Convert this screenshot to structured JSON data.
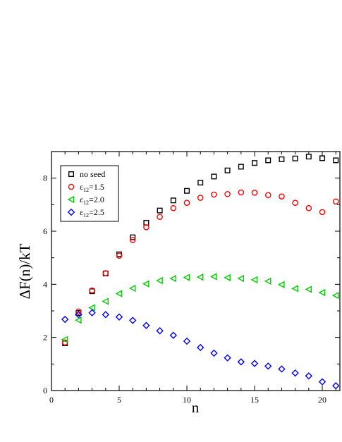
{
  "chart_data": {
    "type": "scatter",
    "title": "",
    "xlabel": "n",
    "ylabel": "ΔF(n)/kT",
    "xlim": [
      0,
      21.3
    ],
    "ylim": [
      0,
      9
    ],
    "xticks": [
      0,
      5,
      10,
      15,
      20
    ],
    "yticks": [
      0,
      2,
      4,
      6,
      8
    ],
    "grid": false,
    "legend_position": "top-left",
    "x": [
      1,
      2,
      3,
      4,
      5,
      6,
      7,
      8,
      9,
      10,
      11,
      12,
      13,
      14,
      15,
      16,
      17,
      18,
      19,
      20,
      21
    ],
    "series": [
      {
        "name": "no seed",
        "name_base": "no seed",
        "name_sub": "",
        "name_rest": "",
        "marker": "square",
        "color": "#000000",
        "values": [
          1.78,
          2.92,
          3.74,
          4.41,
          5.13,
          5.77,
          6.32,
          6.78,
          7.16,
          7.52,
          7.83,
          8.06,
          8.29,
          8.43,
          8.57,
          8.67,
          8.71,
          8.74,
          8.81,
          8.75,
          8.67
        ]
      },
      {
        "name": "ε12=1.5",
        "name_base": "ε",
        "name_sub": "12",
        "name_rest": "=1.5",
        "marker": "circle",
        "color": "#ff0000",
        "values": [
          1.81,
          2.98,
          3.77,
          4.42,
          5.08,
          5.67,
          6.15,
          6.54,
          6.87,
          7.07,
          7.26,
          7.38,
          7.4,
          7.46,
          7.45,
          7.36,
          7.31,
          7.07,
          6.87,
          6.72,
          7.12
        ]
      },
      {
        "name": "ε12=2.0",
        "name_base": "ε",
        "name_sub": "12",
        "name_rest": "=2.0",
        "marker": "triangle-left",
        "color": "#00cc00",
        "values": [
          1.92,
          2.65,
          3.12,
          3.36,
          3.65,
          3.85,
          4.02,
          4.14,
          4.22,
          4.26,
          4.27,
          4.29,
          4.25,
          4.22,
          4.17,
          4.12,
          3.99,
          3.84,
          3.81,
          3.69,
          3.58
        ]
      },
      {
        "name": "ε12=2.5",
        "name_base": "ε",
        "name_sub": "12",
        "name_rest": "=2.5",
        "marker": "diamond",
        "color": "#0000ff",
        "values": [
          2.68,
          2.86,
          2.93,
          2.86,
          2.77,
          2.64,
          2.45,
          2.25,
          2.08,
          1.86,
          1.62,
          1.41,
          1.23,
          1.08,
          1.02,
          0.92,
          0.81,
          0.66,
          0.55,
          0.33,
          0.18
        ]
      }
    ]
  }
}
